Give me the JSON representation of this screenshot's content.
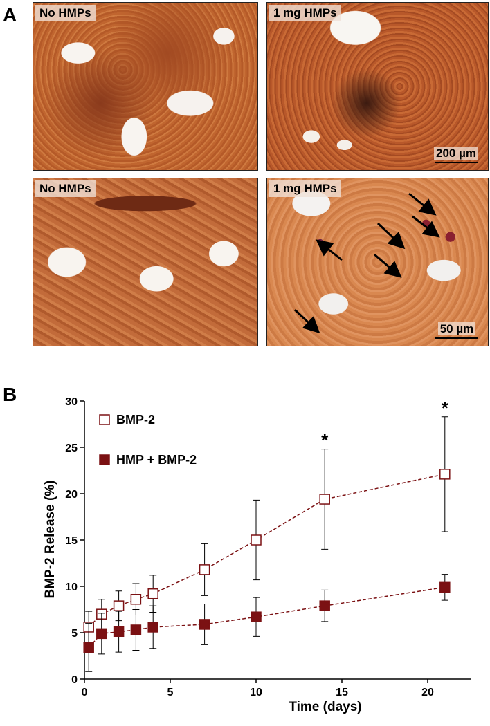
{
  "panel_a": {
    "label": "A",
    "images": [
      {
        "label": "No HMPs"
      },
      {
        "label": "1 mg HMPs",
        "scale_bar": "200 µm"
      },
      {
        "label": "No HMPs"
      },
      {
        "label": "1 mg HMPs",
        "scale_bar": "50 µm"
      }
    ]
  },
  "chart_data": {
    "type": "line",
    "panel_label": "B",
    "x_label": "Time (days)",
    "y_label": "BMP-2 Release (%)",
    "x": [
      0.25,
      1,
      2,
      3,
      4,
      7,
      10,
      14,
      21
    ],
    "series": [
      {
        "name": "BMP-2",
        "color": "#7b1113",
        "marker_fill": "#ffffff",
        "values": [
          5.6,
          7.0,
          7.9,
          8.6,
          9.2,
          11.8,
          15.0,
          19.4,
          22.1
        ],
        "errors": [
          1.7,
          1.6,
          1.6,
          1.7,
          2.0,
          2.8,
          4.3,
          5.4,
          6.2
        ]
      },
      {
        "name": "HMP + BMP-2",
        "color": "#7b1113",
        "marker_fill": "#7b1113",
        "values": [
          3.4,
          4.9,
          5.1,
          5.3,
          5.6,
          5.9,
          6.7,
          7.9,
          9.9
        ],
        "errors": [
          2.6,
          2.2,
          2.2,
          2.2,
          2.3,
          2.2,
          2.1,
          1.7,
          1.4
        ]
      }
    ],
    "annotations": [
      {
        "text": "*",
        "x": 14
      },
      {
        "text": "*",
        "x": 21
      }
    ],
    "xlim": [
      0,
      22.5
    ],
    "ylim": [
      0,
      30
    ],
    "xticks": [
      0,
      5,
      10,
      15,
      20
    ],
    "yticks": [
      0,
      5,
      10,
      15,
      20,
      25,
      30
    ],
    "grid": false,
    "legend": "upper left"
  }
}
